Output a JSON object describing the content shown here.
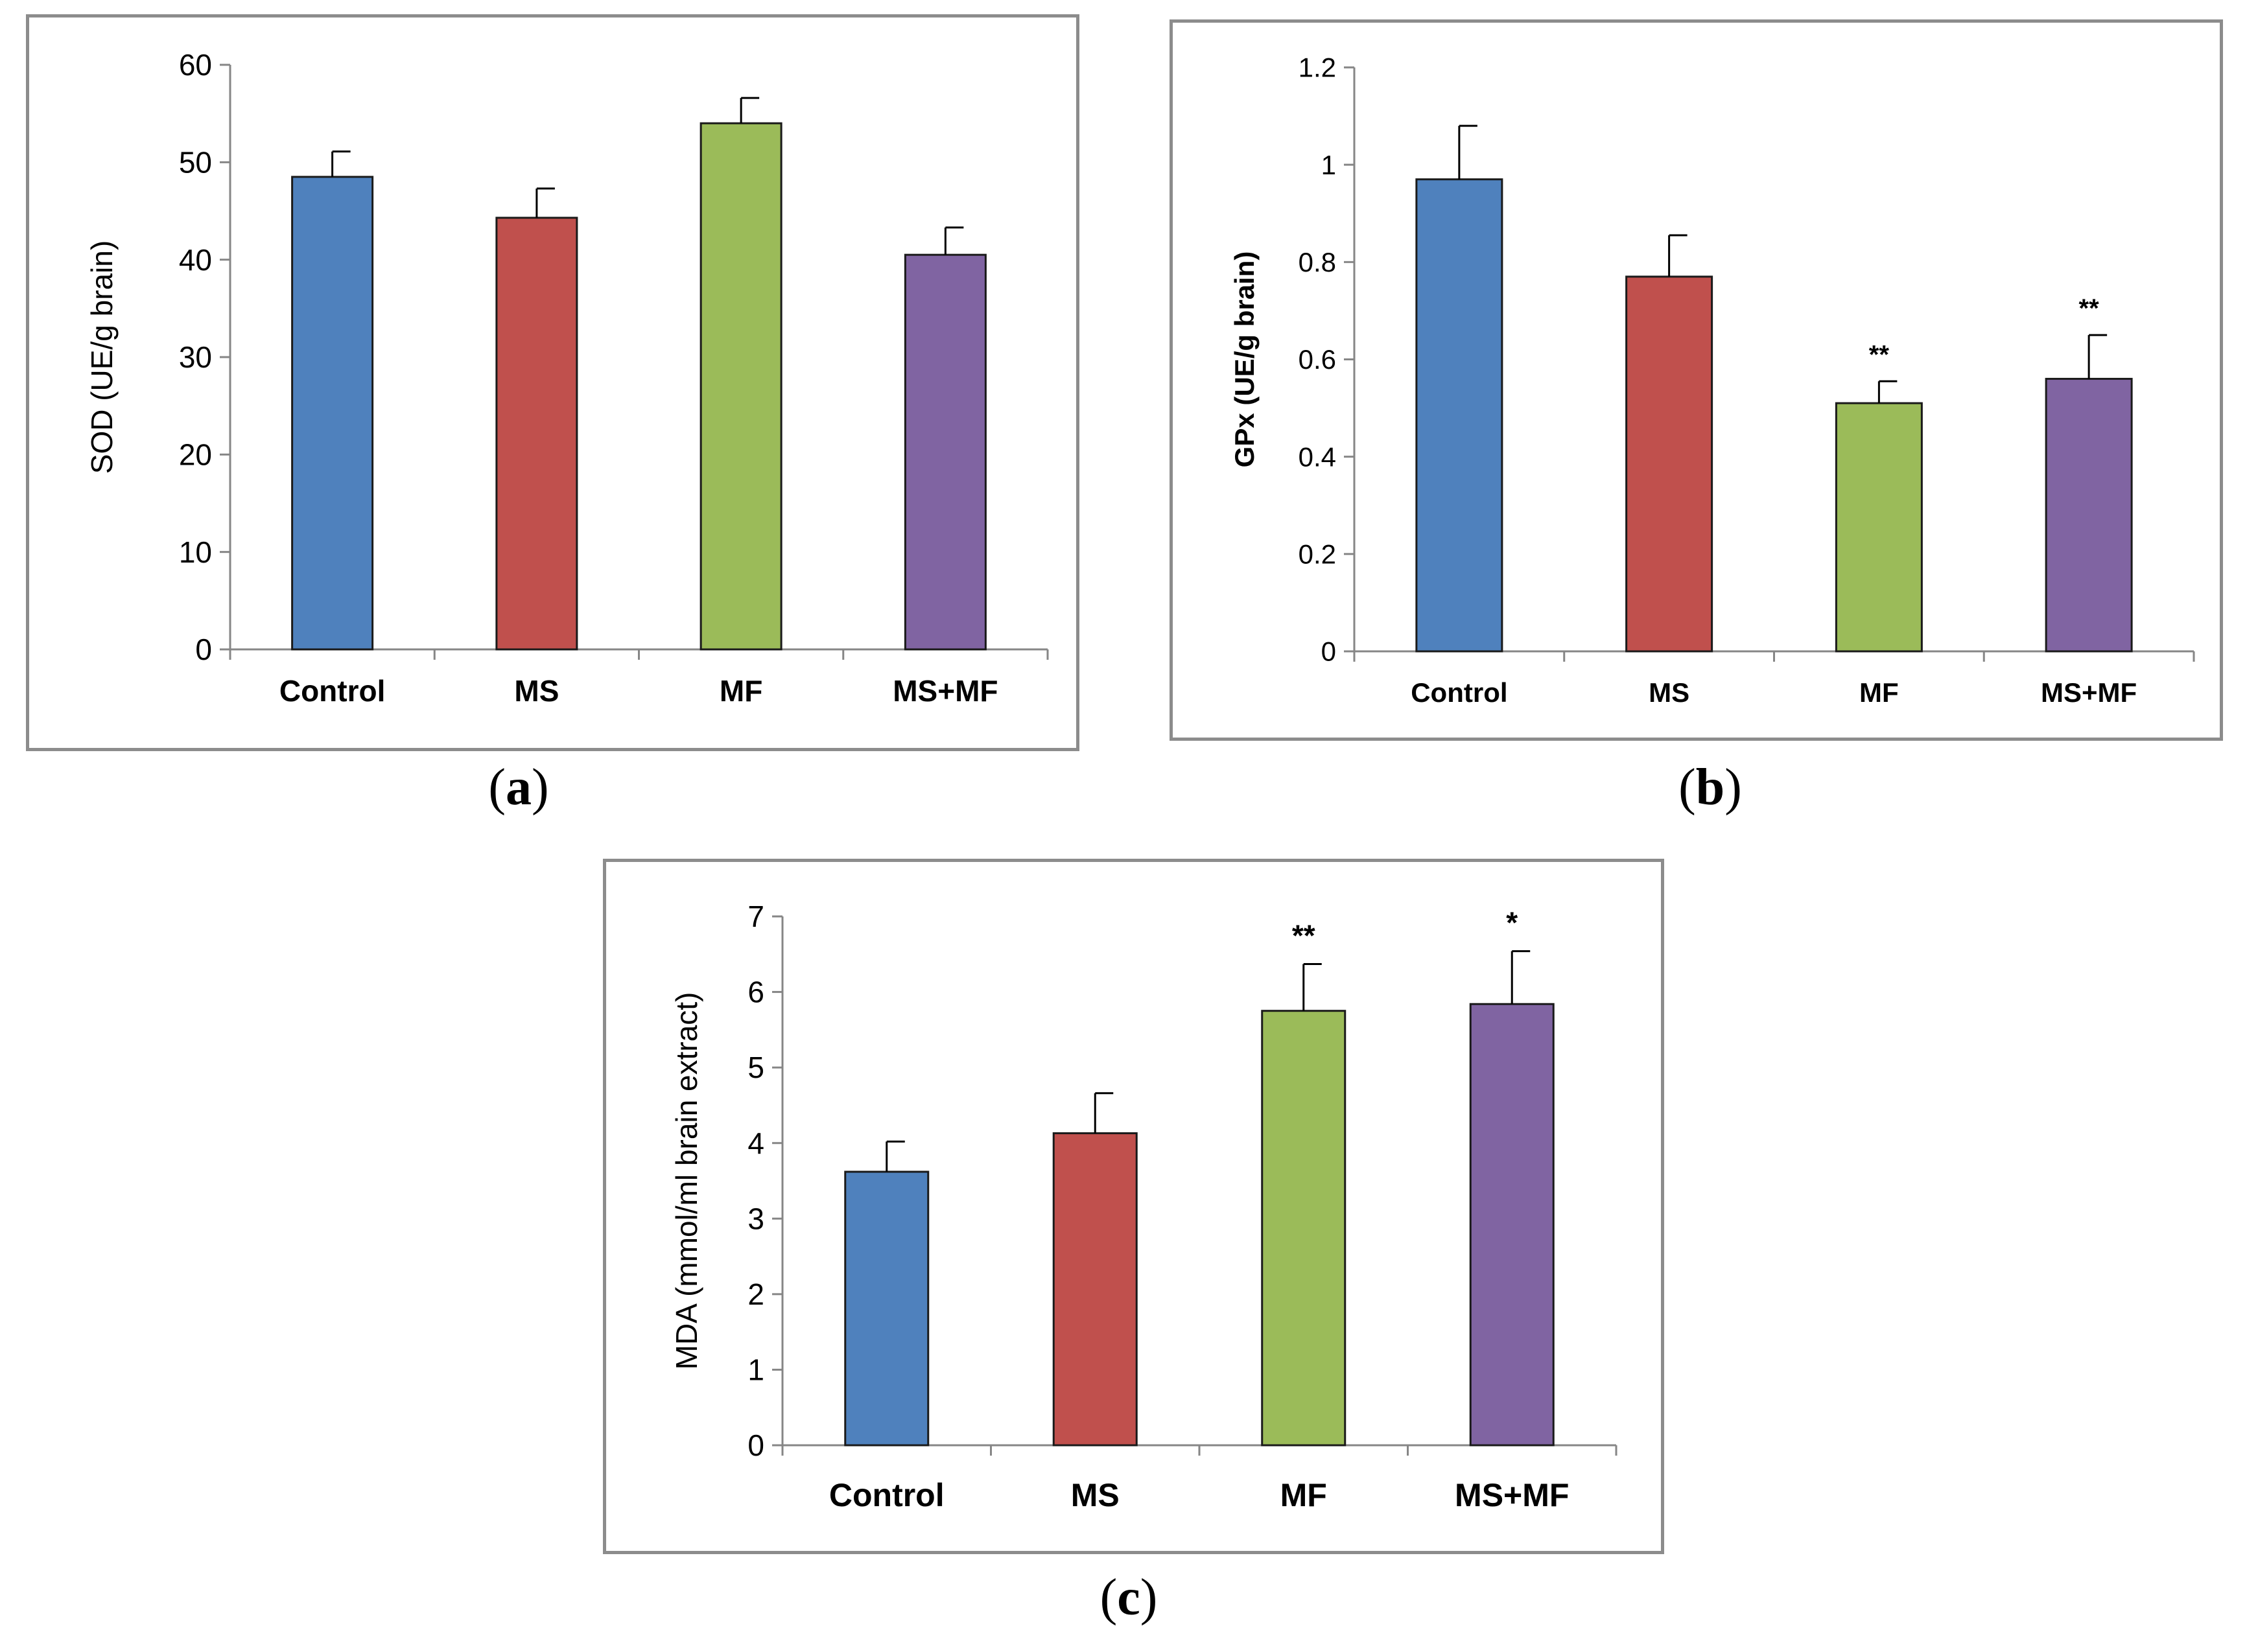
{
  "chart_data": [
    {
      "type": "bar",
      "panel_label": "a",
      "ylabel": "SOD (UE/g brain)",
      "xlabel": "",
      "title": "",
      "categories": [
        "Control",
        "MS",
        "MF",
        "MS+MF"
      ],
      "values": [
        48.5,
        44.3,
        54.0,
        40.5
      ],
      "error_plus": [
        2.6,
        3.0,
        2.6,
        2.8
      ],
      "annotations": [
        "",
        "",
        "",
        ""
      ],
      "ylim": [
        0,
        60
      ],
      "yticks": [
        "0",
        "10",
        "20",
        "30",
        "40",
        "50",
        "60"
      ],
      "colors": [
        "#4f81bd",
        "#c0504d",
        "#9bbb59",
        "#8064a2"
      ],
      "grid": false,
      "legend": "none"
    },
    {
      "type": "bar",
      "panel_label": "b",
      "ylabel": "GPx (UE/g brain)",
      "xlabel": "",
      "title": "",
      "categories": [
        "Control",
        "MS",
        "MF",
        "MS+MF"
      ],
      "values": [
        0.97,
        0.77,
        0.51,
        0.56
      ],
      "error_plus": [
        0.11,
        0.085,
        0.045,
        0.09
      ],
      "annotations": [
        "",
        "",
        "**",
        "**"
      ],
      "ylim": [
        0,
        1.2
      ],
      "yticks": [
        "0",
        "0.2",
        "0.4",
        "0.6",
        "0.8",
        "1",
        "1.2"
      ],
      "colors": [
        "#4f81bd",
        "#c0504d",
        "#9bbb59",
        "#8064a2"
      ],
      "grid": false,
      "legend": "none"
    },
    {
      "type": "bar",
      "panel_label": "c",
      "ylabel": "MDA (mmol/ml brain extract)",
      "xlabel": "",
      "title": "",
      "categories": [
        "Control",
        "MS",
        "MF",
        "MS+MF"
      ],
      "values": [
        3.62,
        4.13,
        5.75,
        5.84
      ],
      "error_plus": [
        0.4,
        0.53,
        0.62,
        0.7
      ],
      "annotations": [
        "",
        "",
        "**",
        "*"
      ],
      "ylim": [
        0,
        7
      ],
      "yticks": [
        "0",
        "1",
        "2",
        "3",
        "4",
        "5",
        "6",
        "7"
      ],
      "colors": [
        "#4f81bd",
        "#c0504d",
        "#9bbb59",
        "#8064a2"
      ],
      "grid": false,
      "legend": "none"
    }
  ]
}
